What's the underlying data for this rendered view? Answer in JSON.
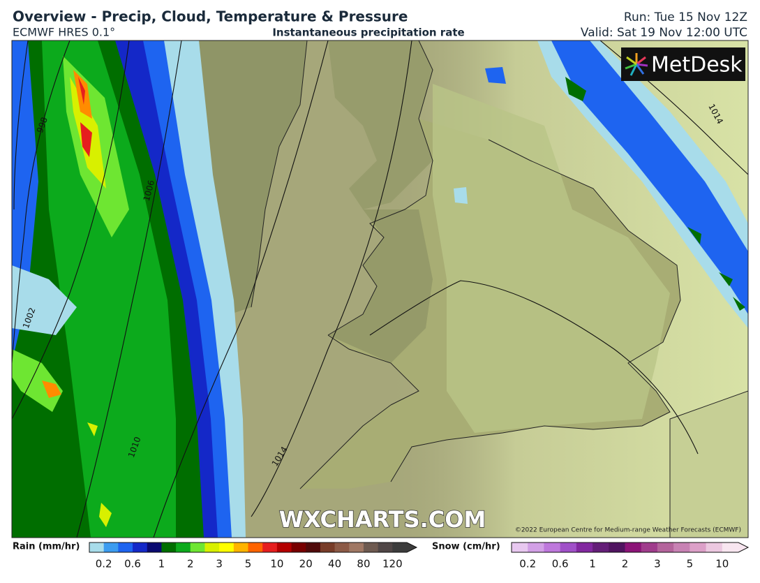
{
  "header": {
    "title": "Overview - Precip, Cloud, Temperature & Pressure",
    "model": "ECMWF HRES 0.1°",
    "subtitle": "Instantaneous precipitation rate",
    "run": "Run: Tue 15 Nov 12Z",
    "valid": "Valid: Sat 19 Nov 12:00 UTC"
  },
  "map": {
    "isobar_labels": [
      "998",
      "1002",
      "1006",
      "1010",
      "1014",
      "1014"
    ],
    "logo": "MetDesk",
    "watermark": "WXCHARTS.COM",
    "copyright": "©2022 European Centre for Medium-range Weather Forecasts (ECMWF)"
  },
  "legend": {
    "rain": {
      "label": "Rain (mm/hr)",
      "ticks": [
        "0.2",
        "0.6",
        "1",
        "2",
        "3",
        "5",
        "10",
        "20",
        "40",
        "80",
        "120"
      ],
      "colors": [
        "#a8dcea",
        "#3c9cf0",
        "#1e64f0",
        "#1428c8",
        "#0a0a70",
        "#006e00",
        "#0caa1c",
        "#6ee632",
        "#d8f000",
        "#ffff00",
        "#ffb400",
        "#ff6400",
        "#e61e1e",
        "#b40000",
        "#780000",
        "#500a0a",
        "#783c28",
        "#8c5a46",
        "#a07864",
        "#6e5a50",
        "#504646",
        "#3c3c3c"
      ]
    },
    "snow": {
      "label": "Snow (cm/hr)",
      "ticks": [
        "0.2",
        "0.6",
        "1",
        "2",
        "3",
        "5",
        "10"
      ],
      "colors": [
        "#e8c8f0",
        "#d2a0e6",
        "#be78dc",
        "#a050c8",
        "#8228a0",
        "#641e78",
        "#501460",
        "#8c1478",
        "#a03c8c",
        "#b4649c",
        "#c882b4",
        "#dca0c8",
        "#ecc8e0",
        "#f8e6f0"
      ]
    }
  }
}
